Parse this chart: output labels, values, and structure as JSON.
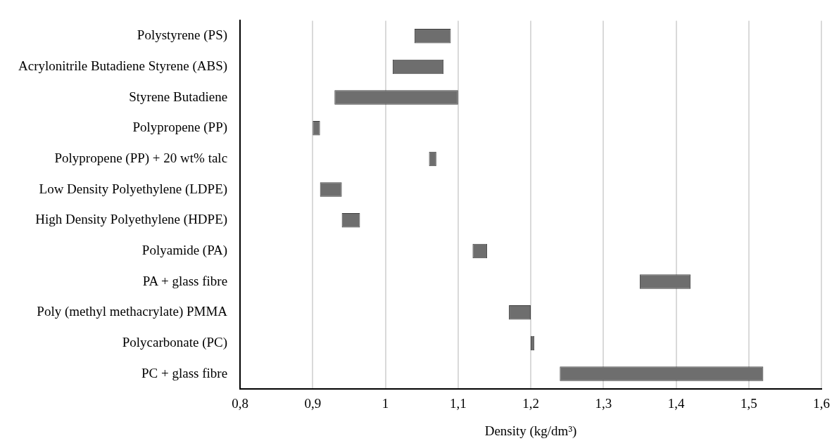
{
  "chart_data": {
    "type": "bar",
    "orientation": "horizontal",
    "xlabel": "Density (kg/dm³)",
    "categories": [
      "Polystyrene (PS)",
      "Acrylonitrile Butadiene Styrene (ABS)",
      "Styrene Butadiene",
      "Polypropene (PP)",
      "Polypropene (PP) + 20 wt% talc",
      "Low Density Polyethylene (LDPE)",
      "High Density Polyethylene (HDPE)",
      "Polyamide (PA)",
      "PA + glass fibre",
      "Poly (methyl methacrylate) PMMA",
      "Polycarbonate (PC)",
      "PC + glass fibre"
    ],
    "base": [
      1.04,
      1.01,
      0.93,
      0.9,
      1.06,
      0.91,
      0.94,
      1.12,
      1.35,
      1.17,
      1.2,
      1.24
    ],
    "values": [
      0.05,
      0.07,
      0.17,
      0.01,
      0.01,
      0.03,
      0.025,
      0.02,
      0.07,
      0.03,
      0.005,
      0.28
    ],
    "color": "#6e6e6e",
    "xlim": [
      0.8,
      1.6
    ],
    "xticks": [
      {
        "value": 0.8,
        "label": "0,8"
      },
      {
        "value": 0.9,
        "label": "0,9"
      },
      1,
      {
        "value": 1.1,
        "label": "1,1"
      },
      {
        "value": 1.2,
        "label": "1,2"
      },
      {
        "value": 1.3,
        "label": "1,3"
      },
      {
        "value": 1.4,
        "label": "1,4"
      },
      {
        "value": 1.5,
        "label": "1,5"
      },
      {
        "value": 1.6,
        "label": "1,6"
      }
    ],
    "grid": "x",
    "legend": false
  }
}
